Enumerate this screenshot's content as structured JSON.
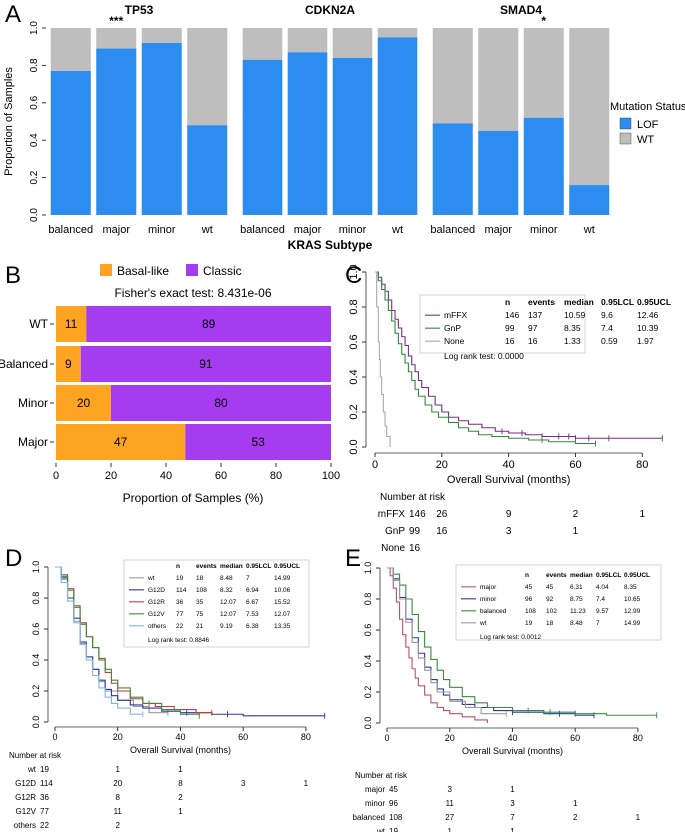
{
  "panel_labels": {
    "a": "A",
    "b": "B",
    "c": "C",
    "d": "D",
    "e": "E"
  },
  "chart_data": [
    {
      "id": "A",
      "type": "bar",
      "stacked": true,
      "ylabel": "Proportion of Samples",
      "xlabel": "KRAS Subtype",
      "ylim": [
        0,
        1
      ],
      "yticks": [
        "0.0",
        "0.2",
        "0.4",
        "0.6",
        "0.8",
        "1.0"
      ],
      "categories": [
        "balanced",
        "major",
        "minor",
        "wt"
      ],
      "colors": {
        "LOF": "#2d8cf0",
        "WT": "#bebebe"
      },
      "legend_title": "Mutation Status",
      "legend": [
        "LOF",
        "WT"
      ],
      "facets": [
        {
          "title": "TP53",
          "sig": "***",
          "sig_at": "major",
          "lof": [
            0.77,
            0.89,
            0.92,
            0.48
          ]
        },
        {
          "title": "CDKN2A",
          "sig": "",
          "sig_at": "",
          "lof": [
            0.83,
            0.87,
            0.84,
            0.95
          ]
        },
        {
          "title": "SMAD4",
          "sig": "*",
          "sig_at": "minor",
          "lof": [
            0.49,
            0.45,
            0.52,
            0.16
          ]
        }
      ]
    },
    {
      "id": "B",
      "type": "bar",
      "orientation": "horizontal",
      "stacked": true,
      "legend": [
        "Basal-like",
        "Classic"
      ],
      "colors": {
        "Basal-like": "#ffa420",
        "Classic": "#a63cf0"
      },
      "annotation": "Fisher's exact test: 8.431e-06",
      "categories": [
        "WT",
        "Balanced",
        "Minor",
        "Major"
      ],
      "series": [
        {
          "name": "Basal-like",
          "values": [
            11,
            9,
            20,
            47
          ]
        },
        {
          "name": "Classic",
          "values": [
            89,
            91,
            80,
            53
          ]
        }
      ],
      "xlabel": "Proportion of Samples (%)",
      "xlim": [
        0,
        100
      ],
      "xticks": [
        "0",
        "20",
        "40",
        "60",
        "80",
        "100"
      ]
    },
    {
      "id": "C",
      "type": "line",
      "subtype": "kaplan-meier",
      "xlabel": "Overall Survival (months)",
      "xlim": [
        0,
        88
      ],
      "ylim": [
        0,
        1
      ],
      "xticks": [
        "0",
        "20",
        "40",
        "60",
        "80"
      ],
      "yticks": [
        "0.0",
        "0.2",
        "0.4",
        "0.6",
        "0.8",
        "1.0"
      ],
      "table_header": [
        "n",
        "events",
        "median",
        "0.95LCL",
        "0.95UCL"
      ],
      "series": [
        {
          "name": "mFFX",
          "color": "#7b2a8c",
          "n": "146",
          "events": "137",
          "median": "10.59",
          "lcl": "9.6",
          "ucl": "12.46",
          "x": [
            0,
            1,
            2,
            3,
            4,
            5,
            6,
            7,
            8,
            9,
            10,
            11,
            12,
            13,
            14,
            16,
            18,
            20,
            22,
            25,
            28,
            32,
            36,
            40,
            45,
            50,
            55,
            60,
            70,
            86
          ],
          "y": [
            1,
            0.97,
            0.93,
            0.89,
            0.84,
            0.78,
            0.73,
            0.68,
            0.63,
            0.58,
            0.52,
            0.47,
            0.43,
            0.38,
            0.34,
            0.29,
            0.24,
            0.2,
            0.17,
            0.15,
            0.13,
            0.11,
            0.09,
            0.08,
            0.07,
            0.06,
            0.06,
            0.05,
            0.05,
            0.05
          ],
          "censor_x": [
            38,
            44,
            50,
            55,
            58,
            60,
            64,
            70,
            86
          ]
        },
        {
          "name": "GnP",
          "color": "#2e8b3a",
          "n": "99",
          "events": "97",
          "median": "8.35",
          "lcl": "7.4",
          "ucl": "10.39",
          "x": [
            0,
            1,
            2,
            3,
            4,
            5,
            6,
            7,
            8,
            9,
            10,
            11,
            12,
            13,
            15,
            17,
            19,
            22,
            25,
            28,
            31,
            35,
            40,
            46,
            52,
            60,
            66
          ],
          "y": [
            1,
            0.95,
            0.9,
            0.84,
            0.78,
            0.72,
            0.65,
            0.59,
            0.53,
            0.48,
            0.43,
            0.38,
            0.33,
            0.29,
            0.24,
            0.2,
            0.17,
            0.14,
            0.11,
            0.09,
            0.07,
            0.06,
            0.05,
            0.04,
            0.03,
            0.02,
            0.02
          ],
          "censor_x": [
            50,
            66
          ]
        },
        {
          "name": "None",
          "color": "#aaaaaa",
          "n": "16",
          "events": "16",
          "median": "1.33",
          "lcl": "0.59",
          "ucl": "1.97",
          "x": [
            0,
            0.5,
            1,
            1.3,
            1.6,
            2,
            2.5,
            3,
            3.5,
            4.5
          ],
          "y": [
            1,
            0.8,
            0.6,
            0.5,
            0.4,
            0.3,
            0.2,
            0.12,
            0.06,
            0
          ],
          "censor_x": []
        }
      ],
      "test": "Log rank test: 0.0000",
      "risk_title": "Number at risk",
      "risk_rows": [
        {
          "label": "mFFX",
          "values": [
            "146",
            "26",
            "9",
            "2",
            "1"
          ]
        },
        {
          "label": "GnP",
          "values": [
            "99",
            "16",
            "3",
            "1"
          ]
        },
        {
          "label": "None",
          "values": [
            "16"
          ]
        }
      ]
    },
    {
      "id": "D",
      "type": "line",
      "subtype": "kaplan-meier",
      "xlabel": "Overall Survival (months)",
      "xlim": [
        0,
        88
      ],
      "ylim": [
        0,
        1
      ],
      "xticks": [
        "0",
        "20",
        "40",
        "60",
        "80"
      ],
      "yticks": [
        "0.0",
        "0.2",
        "0.4",
        "0.6",
        "0.8",
        "1.0"
      ],
      "table_header": [
        "n",
        "events",
        "median",
        "0.95LCL",
        "0.95UCL"
      ],
      "series": [
        {
          "name": "wt",
          "color": "#999999",
          "n": "19",
          "events": "18",
          "median": "8.48",
          "lcl": "7",
          "ucl": "14.99",
          "x": [
            0,
            2,
            4,
            6,
            8,
            10,
            12,
            14,
            16,
            20,
            25,
            30,
            36
          ],
          "y": [
            1,
            0.92,
            0.8,
            0.65,
            0.52,
            0.42,
            0.34,
            0.26,
            0.2,
            0.14,
            0.1,
            0.06,
            0.06
          ],
          "censor_x": [
            36
          ]
        },
        {
          "name": "G12D",
          "color": "#2a3a9c",
          "n": "114",
          "events": "108",
          "median": "8.32",
          "lcl": "6.94",
          "ucl": "10.06",
          "x": [
            0,
            2,
            4,
            6,
            8,
            10,
            12,
            14,
            16,
            18,
            20,
            24,
            28,
            34,
            40,
            50,
            60,
            70,
            86
          ],
          "y": [
            1,
            0.93,
            0.8,
            0.67,
            0.51,
            0.42,
            0.34,
            0.27,
            0.21,
            0.17,
            0.14,
            0.11,
            0.09,
            0.07,
            0.06,
            0.05,
            0.04,
            0.04,
            0.04
          ],
          "censor_x": [
            42,
            55,
            86
          ]
        },
        {
          "name": "G12R",
          "color": "#c23a3a",
          "n": "36",
          "events": "35",
          "median": "12.07",
          "lcl": "6.67",
          "ucl": "15.52",
          "x": [
            0,
            2,
            4,
            6,
            8,
            10,
            12,
            14,
            16,
            18,
            20,
            24,
            28,
            32,
            38,
            45,
            50
          ],
          "y": [
            1,
            0.95,
            0.86,
            0.75,
            0.64,
            0.55,
            0.48,
            0.4,
            0.32,
            0.25,
            0.2,
            0.15,
            0.12,
            0.1,
            0.08,
            0.06,
            0.06
          ],
          "censor_x": [
            30,
            50
          ]
        },
        {
          "name": "G12V",
          "color": "#3a8c3a",
          "n": "77",
          "events": "75",
          "median": "12.07",
          "lcl": "7.53",
          "ucl": "12.07",
          "x": [
            0,
            2,
            4,
            6,
            8,
            10,
            12,
            14,
            16,
            18,
            20,
            24,
            28,
            34,
            40,
            46
          ],
          "y": [
            1,
            0.94,
            0.85,
            0.74,
            0.63,
            0.55,
            0.48,
            0.41,
            0.34,
            0.27,
            0.22,
            0.16,
            0.12,
            0.08,
            0.05,
            0.04
          ],
          "censor_x": [
            46
          ]
        },
        {
          "name": "others",
          "color": "#7fb6e0",
          "n": "22",
          "events": "21",
          "median": "9.19",
          "lcl": "6.38",
          "ucl": "13.35",
          "x": [
            0,
            2,
            4,
            6,
            8,
            10,
            12,
            14,
            16,
            18,
            20,
            24,
            28
          ],
          "y": [
            1,
            0.9,
            0.78,
            0.64,
            0.5,
            0.4,
            0.3,
            0.22,
            0.16,
            0.12,
            0.09,
            0.05,
            0.05
          ],
          "censor_x": [
            28
          ]
        }
      ],
      "test": "Log rank test: 0.8846",
      "risk_title": "Number at risk",
      "risk_rows": [
        {
          "label": "wt",
          "values": [
            "19",
            "1",
            "1"
          ]
        },
        {
          "label": "G12D",
          "values": [
            "114",
            "20",
            "8",
            "3",
            "1"
          ]
        },
        {
          "label": "G12R",
          "values": [
            "36",
            "8",
            "2"
          ]
        },
        {
          "label": "G12V",
          "values": [
            "77",
            "11",
            "1"
          ]
        },
        {
          "label": "others",
          "values": [
            "22",
            "2"
          ]
        }
      ]
    },
    {
      "id": "E",
      "type": "line",
      "subtype": "kaplan-meier",
      "xlabel": "Overall Survival (months)",
      "xlim": [
        0,
        88
      ],
      "ylim": [
        0,
        1
      ],
      "xticks": [
        "0",
        "20",
        "40",
        "60",
        "80"
      ],
      "yticks": [
        "0.0",
        "0.2",
        "0.4",
        "0.6",
        "0.8",
        "1.0"
      ],
      "table_header": [
        "n",
        "events",
        "median",
        "0.95LCL",
        "0.95UCL"
      ],
      "series": [
        {
          "name": "major",
          "color": "#c0506a",
          "n": "45",
          "events": "45",
          "median": "6.31",
          "lcl": "4.04",
          "ucl": "8.35",
          "x": [
            0,
            1,
            2,
            3,
            4,
            5,
            6,
            7,
            8,
            9,
            10,
            12,
            14,
            16,
            18,
            20,
            24,
            28,
            32
          ],
          "y": [
            1,
            0.95,
            0.87,
            0.78,
            0.67,
            0.57,
            0.49,
            0.42,
            0.35,
            0.29,
            0.24,
            0.18,
            0.13,
            0.1,
            0.08,
            0.06,
            0.04,
            0.02,
            0
          ],
          "censor_x": []
        },
        {
          "name": "minor",
          "color": "#2a3a9c",
          "n": "96",
          "events": "92",
          "median": "8.75",
          "lcl": "7.4",
          "ucl": "10.65",
          "x": [
            0,
            2,
            4,
            6,
            8,
            10,
            12,
            14,
            16,
            18,
            20,
            24,
            28,
            34,
            40,
            50,
            60,
            66
          ],
          "y": [
            1,
            0.93,
            0.81,
            0.67,
            0.55,
            0.45,
            0.36,
            0.28,
            0.22,
            0.18,
            0.15,
            0.12,
            0.1,
            0.08,
            0.07,
            0.06,
            0.05,
            0.05
          ],
          "censor_x": [
            40,
            55,
            66
          ]
        },
        {
          "name": "balanced",
          "color": "#3a8c3a",
          "n": "108",
          "events": "102",
          "median": "11.23",
          "lcl": "9.57",
          "ucl": "12.99",
          "x": [
            0,
            2,
            4,
            6,
            8,
            10,
            12,
            14,
            16,
            18,
            20,
            24,
            28,
            32,
            40,
            50,
            60,
            70,
            86
          ],
          "y": [
            1,
            0.96,
            0.89,
            0.8,
            0.7,
            0.59,
            0.49,
            0.41,
            0.34,
            0.28,
            0.23,
            0.17,
            0.13,
            0.1,
            0.08,
            0.07,
            0.06,
            0.05,
            0.05
          ],
          "censor_x": [
            45,
            52,
            60,
            86
          ]
        },
        {
          "name": "wt",
          "color": "#999999",
          "n": "19",
          "events": "18",
          "median": "8.48",
          "lcl": "7",
          "ucl": "14.99",
          "x": [
            0,
            2,
            4,
            6,
            8,
            10,
            12,
            14,
            16,
            20,
            25,
            30,
            38
          ],
          "y": [
            1,
            0.92,
            0.8,
            0.65,
            0.52,
            0.42,
            0.34,
            0.26,
            0.2,
            0.14,
            0.1,
            0.06,
            0.06
          ],
          "censor_x": [
            38
          ]
        }
      ],
      "test": "Log rank test: 0.0012",
      "risk_title": "Number at risk",
      "risk_rows": [
        {
          "label": "major",
          "values": [
            "45",
            "3",
            "1"
          ]
        },
        {
          "label": "minor",
          "values": [
            "96",
            "11",
            "3",
            "1"
          ]
        },
        {
          "label": "balanced",
          "values": [
            "108",
            "27",
            "7",
            "2",
            "1"
          ]
        },
        {
          "label": "wt",
          "values": [
            "19",
            "1",
            "1"
          ]
        }
      ]
    }
  ]
}
